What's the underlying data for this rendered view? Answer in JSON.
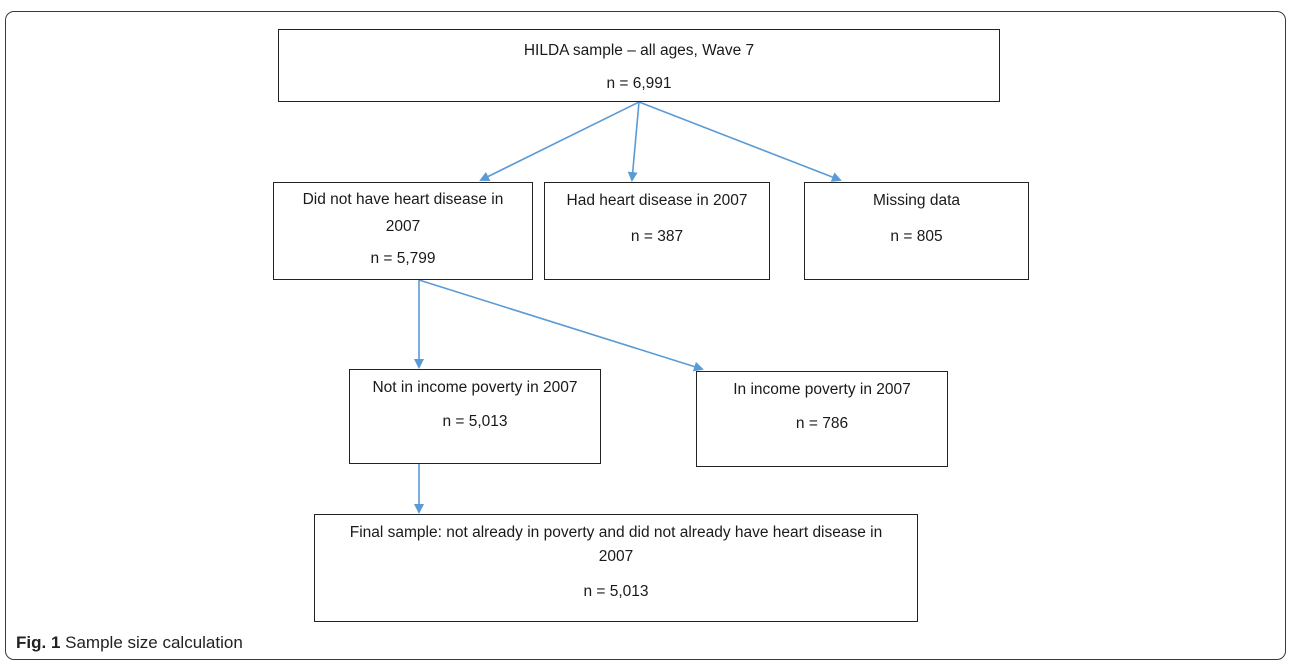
{
  "colors": {
    "arrow": "#5b9bd5",
    "border": "#222222"
  },
  "boxes": {
    "root": {
      "title": "HILDA sample – all ages, Wave 7",
      "n": "n = 6,991"
    },
    "no_heart": {
      "title": "Did not have heart disease in 2007",
      "n": "n = 5,799"
    },
    "had_heart": {
      "title": "Had heart disease in 2007",
      "n": "n = 387"
    },
    "missing": {
      "title": "Missing data",
      "n": "n = 805"
    },
    "not_poverty": {
      "title": "Not in income poverty in 2007",
      "n": "n = 5,013"
    },
    "in_poverty": {
      "title": "In income poverty in 2007",
      "n": "n = 786"
    },
    "final": {
      "title": "Final sample: not already in poverty and did not already have heart disease in 2007",
      "n": "n = 5,013"
    }
  },
  "caption": {
    "label": "Fig. 1",
    "text": "Sample size calculation"
  }
}
